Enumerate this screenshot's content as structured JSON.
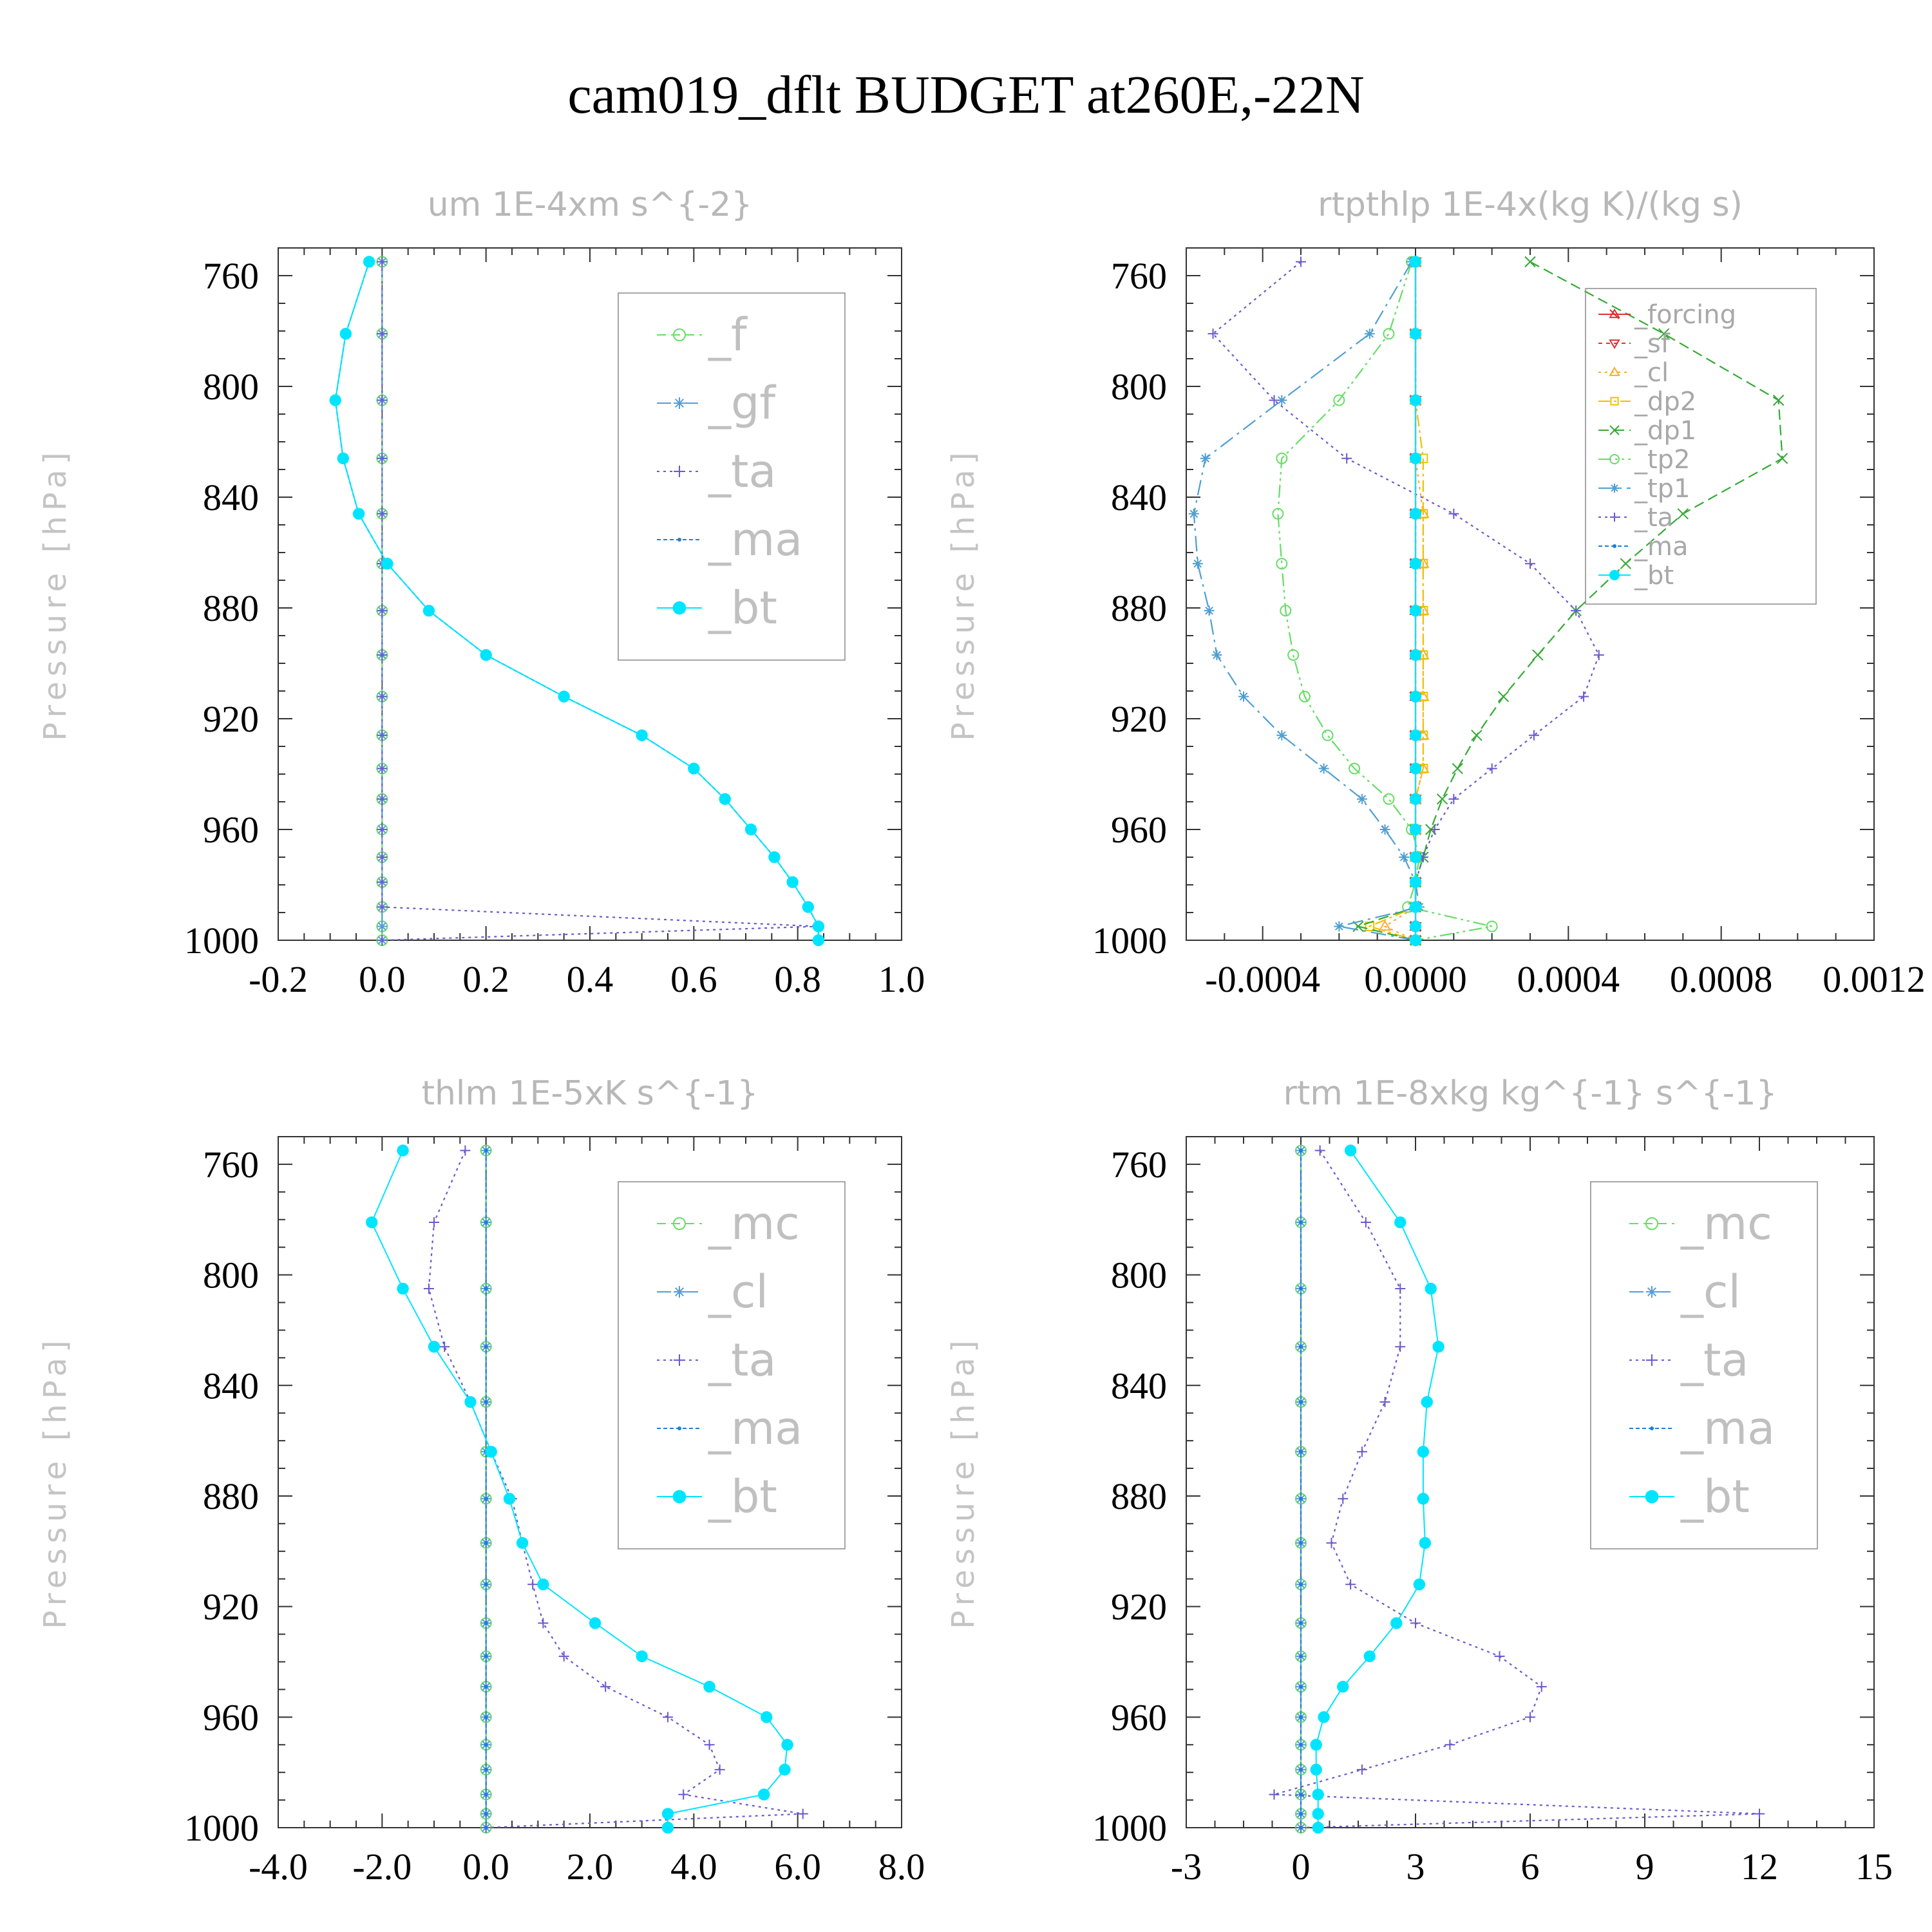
{
  "title": "cam019_dflt  BUDGET at260E,-22N",
  "ylabel": "Pressure [hPa]",
  "chart_data": [
    {
      "type": "line",
      "title": "um  1E-4xm s^{-2}",
      "xlabel": "",
      "ylabel": "Pressure [hPa]",
      "xlim": [
        -0.2,
        1.0
      ],
      "ylim": [
        1000,
        750
      ],
      "xticks": [
        "-0.2",
        "0.0",
        "0.2",
        "0.4",
        "0.6",
        "0.8",
        "1.0"
      ],
      "yticks": [
        "760",
        "800",
        "840",
        "880",
        "920",
        "960",
        "1000"
      ],
      "legend_position": "top-right",
      "legend_style": "big",
      "pressure": [
        755,
        781,
        805,
        826,
        846,
        864,
        881,
        897,
        912,
        926,
        938,
        949,
        960,
        970,
        979,
        988,
        995,
        1000
      ],
      "series": [
        {
          "name": "_f",
          "color": "#66dd66",
          "marker": "circle",
          "dash": "14 8",
          "values": [
            0,
            0,
            0,
            0,
            0,
            0,
            0,
            0,
            0,
            0,
            0,
            0,
            0,
            0,
            0,
            0,
            0,
            0
          ]
        },
        {
          "name": "_gf",
          "color": "#5a9bd5",
          "marker": "star",
          "dash": "22 8 4 8",
          "values": [
            0,
            0,
            0,
            0,
            0,
            0,
            0,
            0,
            0,
            0,
            0,
            0,
            0,
            0,
            0,
            0,
            0,
            0
          ]
        },
        {
          "name": "_ta",
          "color": "#6a5acd",
          "marker": "plus",
          "dash": "4 6",
          "values": [
            0,
            0,
            0,
            0,
            0,
            0,
            0,
            0,
            0,
            0,
            0,
            0,
            0,
            0,
            0,
            0,
            0.84,
            0
          ]
        },
        {
          "name": "_ma",
          "color": "#1e7fd6",
          "marker": "dot",
          "dash": "6 4",
          "values": [
            -0.025,
            -0.07,
            -0.09,
            -0.075,
            -0.045,
            0.01,
            0.09,
            0.2,
            0.35,
            0.5,
            0.6,
            0.66,
            0.71,
            0.755,
            0.79,
            0.82,
            0.84,
            0.84
          ]
        },
        {
          "name": "_bt",
          "color": "#00e5ff",
          "marker": "disc",
          "dash": "",
          "values": [
            -0.025,
            -0.07,
            -0.09,
            -0.075,
            -0.045,
            0.01,
            0.09,
            0.2,
            0.35,
            0.5,
            0.6,
            0.66,
            0.71,
            0.755,
            0.79,
            0.82,
            0.84,
            0.84
          ]
        }
      ]
    },
    {
      "type": "line",
      "title": "rtpthlp  1E-4x(kg K)/(kg s)",
      "xlabel": "",
      "ylabel": "Pressure [hPa]",
      "xlim": [
        -0.0006,
        0.0012
      ],
      "ylim": [
        1000,
        750
      ],
      "xticks": [
        "-0.0004",
        "0.0000",
        "0.0004",
        "0.0008",
        "0.0012"
      ],
      "yticks": [
        "760",
        "800",
        "840",
        "880",
        "920",
        "960",
        "1000"
      ],
      "legend_position": "top-right",
      "legend_style": "small",
      "pressure": [
        755,
        781,
        805,
        826,
        846,
        864,
        881,
        897,
        912,
        926,
        938,
        949,
        960,
        970,
        979,
        988,
        995,
        1000
      ],
      "series": [
        {
          "name": "_forcing",
          "color": "#e03030",
          "marker": "trix",
          "dash": "",
          "values": [
            0,
            0,
            0,
            0,
            0,
            0,
            0,
            0,
            0,
            0,
            0,
            0,
            0,
            0,
            0,
            0,
            0,
            0
          ]
        },
        {
          "name": "_sf",
          "color": "#e03030",
          "marker": "tri-down",
          "dash": "6 6",
          "values": [
            0,
            0,
            0,
            0,
            0,
            0,
            0,
            0,
            0,
            0,
            0,
            0,
            0,
            0,
            0,
            0,
            0,
            0
          ]
        },
        {
          "name": "_cl",
          "color": "#ffaa33",
          "marker": "tri-up",
          "dash": "4 6",
          "values": [
            0,
            0,
            0,
            0,
            2e-05,
            2e-05,
            2e-05,
            2e-05,
            2e-05,
            2e-05,
            2e-05,
            0,
            0,
            0,
            0,
            0,
            -8e-05,
            0
          ]
        },
        {
          "name": "_dp2",
          "color": "#f0c000",
          "marker": "square",
          "dash": "18 6 4 6",
          "values": [
            0,
            0,
            0,
            2e-05,
            2e-05,
            2e-05,
            2e-05,
            2e-05,
            2e-05,
            2e-05,
            2e-05,
            0,
            0,
            0,
            0,
            0,
            -0.00012,
            0
          ]
        },
        {
          "name": "_dp1",
          "color": "#33aa33",
          "marker": "x",
          "dash": "16 8",
          "values": [
            0.0003,
            0.00065,
            0.00095,
            0.00096,
            0.0007,
            0.00055,
            0.00042,
            0.00032,
            0.00023,
            0.00016,
            0.00011,
            7e-05,
            4e-05,
            2e-05,
            0,
            0,
            -0.00015,
            0
          ]
        },
        {
          "name": "_tp2",
          "color": "#66dd66",
          "marker": "circle",
          "dash": "20 6 4 6 4 6",
          "values": [
            -1e-05,
            -7e-05,
            -0.0002,
            -0.00035,
            -0.00036,
            -0.00035,
            -0.00034,
            -0.00032,
            -0.00029,
            -0.00023,
            -0.00016,
            -7e-05,
            -1e-05,
            1e-05,
            0,
            -2e-05,
            0.0002,
            0
          ]
        },
        {
          "name": "_tp1",
          "color": "#4f9fd0",
          "marker": "star",
          "dash": "24 8 4 8",
          "values": [
            -1e-05,
            -0.00012,
            -0.00035,
            -0.00055,
            -0.00058,
            -0.00057,
            -0.00054,
            -0.00052,
            -0.00045,
            -0.00035,
            -0.00024,
            -0.00014,
            -8e-05,
            -3e-05,
            0,
            1e-05,
            -0.0002,
            0
          ]
        },
        {
          "name": "_ta",
          "color": "#6a5acd",
          "marker": "plus",
          "dash": "4 6",
          "values": [
            -0.0003,
            -0.00053,
            -0.00037,
            -0.00018,
            0.0001,
            0.0003,
            0.00042,
            0.00048,
            0.00044,
            0.00031,
            0.0002,
            0.0001,
            5e-05,
            2e-05,
            0,
            0,
            0,
            0
          ]
        },
        {
          "name": "_ma",
          "color": "#1e7fd6",
          "marker": "dot",
          "dash": "6 4",
          "values": [
            0,
            0,
            0,
            0,
            0,
            0,
            0,
            0,
            0,
            0,
            0,
            0,
            0,
            0,
            0,
            0,
            0,
            0
          ]
        },
        {
          "name": "_bt",
          "color": "#00e5ff",
          "marker": "disc",
          "dash": "",
          "values": [
            0,
            0,
            0,
            0,
            0,
            0,
            0,
            0,
            0,
            0,
            0,
            0,
            0,
            0,
            0,
            0,
            0,
            0
          ]
        }
      ]
    },
    {
      "type": "line",
      "title": "thlm  1E-5xK s^{-1}",
      "xlabel": "",
      "ylabel": "Pressure [hPa]",
      "xlim": [
        -4.0,
        8.0
      ],
      "ylim": [
        1000,
        750
      ],
      "xticks": [
        "-4.0",
        "-2.0",
        "0.0",
        "2.0",
        "4.0",
        "6.0",
        "8.0"
      ],
      "yticks": [
        "760",
        "800",
        "840",
        "880",
        "920",
        "960",
        "1000"
      ],
      "legend_position": "top-right",
      "legend_style": "big",
      "pressure": [
        755,
        781,
        805,
        826,
        846,
        864,
        881,
        897,
        912,
        926,
        938,
        949,
        960,
        970,
        979,
        988,
        995,
        1000
      ],
      "series": [
        {
          "name": "_mc",
          "color": "#66dd66",
          "marker": "circle",
          "dash": "14 8",
          "values": [
            0,
            0,
            0,
            0,
            0,
            0,
            0,
            0,
            0,
            0,
            0,
            0,
            0,
            0,
            0,
            0,
            0,
            0
          ]
        },
        {
          "name": "_cl",
          "color": "#5a9bd5",
          "marker": "star",
          "dash": "22 8 4 8",
          "values": [
            0,
            0,
            0,
            0,
            0,
            0,
            0,
            0,
            0,
            0,
            0,
            0,
            0,
            0,
            0,
            0,
            0,
            0
          ]
        },
        {
          "name": "_ta",
          "color": "#6a5acd",
          "marker": "plus",
          "dash": "4 6",
          "values": [
            -0.4,
            -1.0,
            -1.1,
            -0.8,
            -0.3,
            0.1,
            0.5,
            0.7,
            0.9,
            1.1,
            1.5,
            2.3,
            3.5,
            4.3,
            4.5,
            3.8,
            6.1,
            0
          ]
        },
        {
          "name": "_ma",
          "color": "#1e7fd6",
          "marker": "dot",
          "dash": "6 4",
          "values": [
            0,
            0,
            0,
            0,
            0,
            0,
            0,
            0,
            0,
            0,
            0,
            0,
            0,
            0,
            0,
            0,
            0,
            0
          ]
        },
        {
          "name": "_bt",
          "color": "#00e5ff",
          "marker": "disc",
          "dash": "",
          "values": [
            -1.6,
            -2.2,
            -1.6,
            -1.0,
            -0.3,
            0.1,
            0.45,
            0.7,
            1.1,
            2.1,
            3.0,
            4.3,
            5.4,
            5.8,
            5.75,
            5.35,
            3.5,
            3.5
          ]
        }
      ]
    },
    {
      "type": "line",
      "title": "rtm  1E-8xkg kg^{-1} s^{-1}",
      "xlabel": "",
      "ylabel": "Pressure [hPa]",
      "xlim": [
        -3,
        15
      ],
      "ylim": [
        1000,
        750
      ],
      "xticks": [
        "-3",
        "0",
        "3",
        "6",
        "9",
        "12",
        "15"
      ],
      "yticks": [
        "760",
        "800",
        "840",
        "880",
        "920",
        "960",
        "1000"
      ],
      "legend_position": "top-right",
      "legend_style": "big",
      "pressure": [
        755,
        781,
        805,
        826,
        846,
        864,
        881,
        897,
        912,
        926,
        938,
        949,
        960,
        970,
        979,
        988,
        995,
        1000
      ],
      "series": [
        {
          "name": "_mc",
          "color": "#66dd66",
          "marker": "circle",
          "dash": "14 8",
          "values": [
            0,
            0,
            0,
            0,
            0,
            0,
            0,
            0,
            0,
            0,
            0,
            0,
            0,
            0,
            0,
            0,
            0,
            0
          ]
        },
        {
          "name": "_cl",
          "color": "#5a9bd5",
          "marker": "star",
          "dash": "22 8 4 8",
          "values": [
            0,
            0,
            0,
            0,
            0,
            0,
            0,
            0,
            0,
            0,
            0,
            0,
            0,
            0,
            0,
            0,
            0,
            0
          ]
        },
        {
          "name": "_ta",
          "color": "#6a5acd",
          "marker": "plus",
          "dash": "4 6",
          "values": [
            0.5,
            1.7,
            2.6,
            2.6,
            2.2,
            1.6,
            1.1,
            0.8,
            1.3,
            3.0,
            5.2,
            6.3,
            6.0,
            3.9,
            1.6,
            -0.7,
            12.0,
            0
          ]
        },
        {
          "name": "_ma",
          "color": "#1e7fd6",
          "marker": "dot",
          "dash": "6 4",
          "values": [
            0,
            0,
            0,
            0,
            0,
            0,
            0,
            0,
            0,
            0,
            0,
            0,
            0,
            0,
            0,
            0,
            0,
            0
          ]
        },
        {
          "name": "_bt",
          "color": "#00e5ff",
          "marker": "disc",
          "dash": "",
          "values": [
            1.3,
            2.6,
            3.4,
            3.6,
            3.3,
            3.2,
            3.2,
            3.25,
            3.1,
            2.5,
            1.8,
            1.1,
            0.6,
            0.4,
            0.4,
            0.45,
            0.45,
            0.45
          ]
        }
      ]
    }
  ]
}
